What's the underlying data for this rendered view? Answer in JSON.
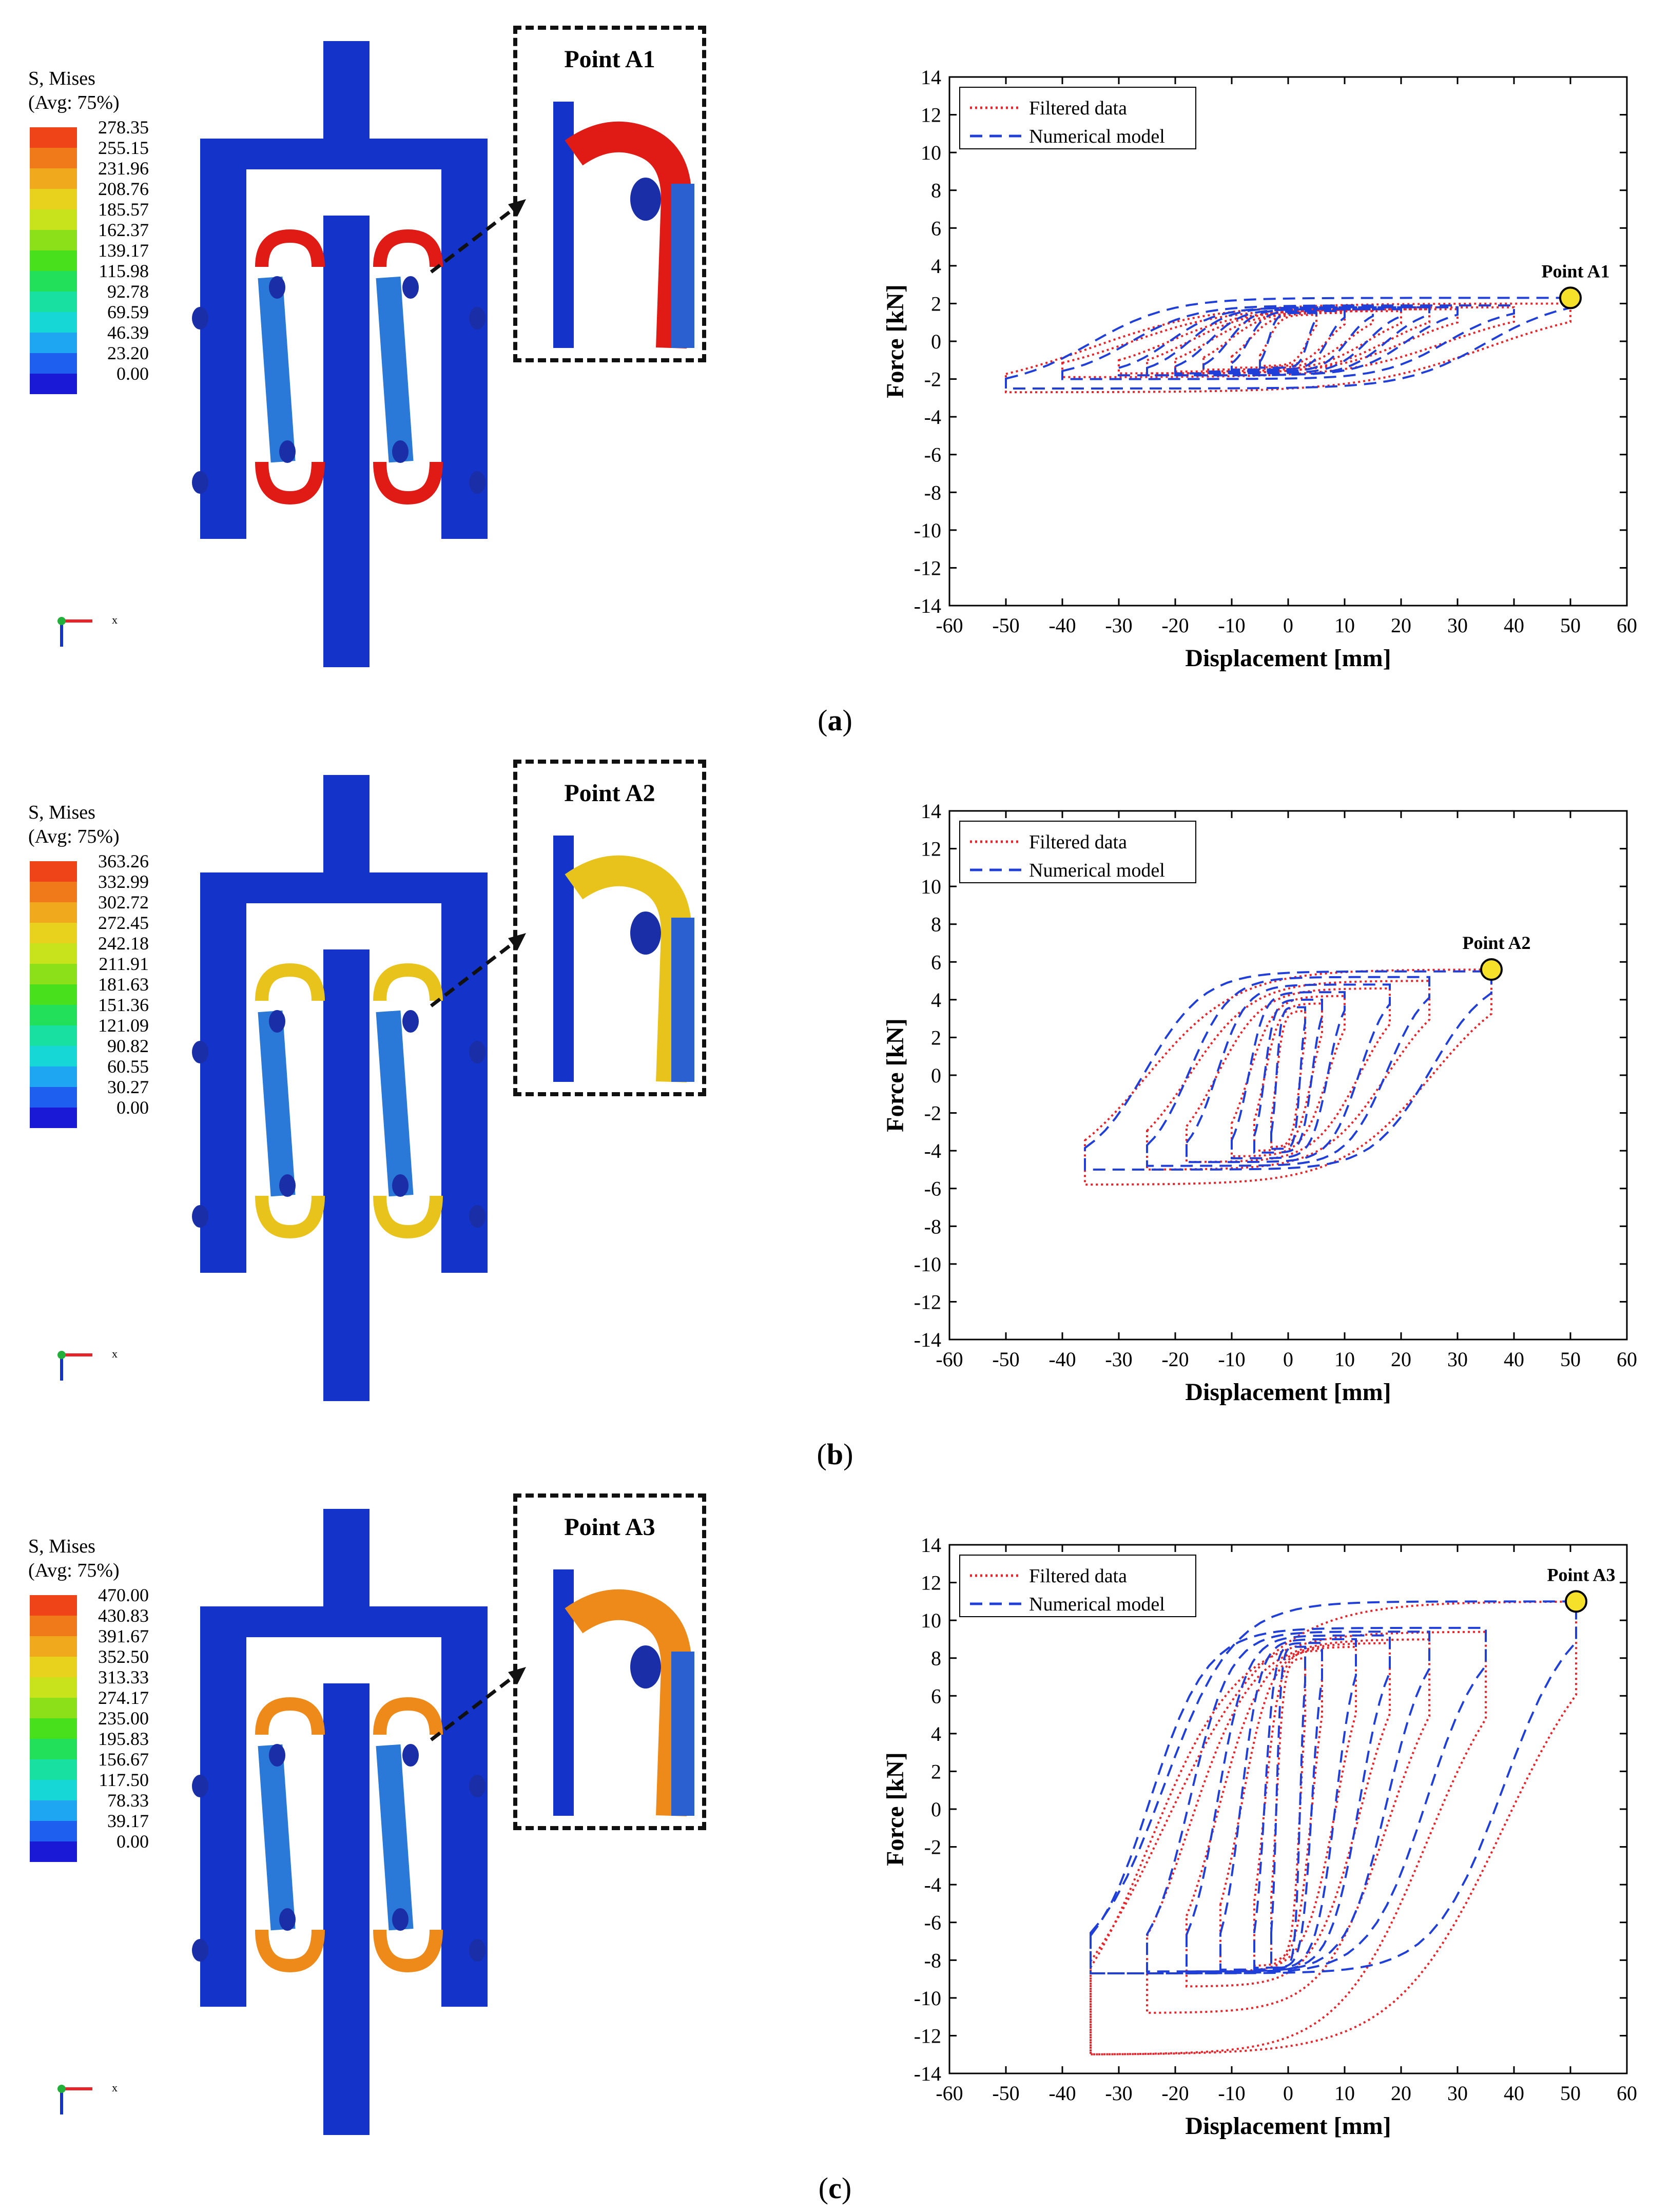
{
  "colors": {
    "filtered": "#e8242b",
    "numerical": "#1f3fd8",
    "struct": "#1433c8",
    "marker": "#f5e12a"
  },
  "legend_title_line1": "S, Mises",
  "legend_title_line2": "(Avg: 75%)",
  "legend_colors": [
    "#1a1ad6",
    "#1f5ff0",
    "#1fa6f2",
    "#16d6d6",
    "#17e0a0",
    "#23e05a",
    "#48e01c",
    "#8ce01a",
    "#c8e21c",
    "#e8d21e",
    "#f0a81c",
    "#f07a1a",
    "#ef4418"
  ],
  "axis_label": "x",
  "panels": [
    {
      "sublabel": "a",
      "legend_values": [
        "278.35",
        "255.15",
        "231.96",
        "208.76",
        "185.57",
        "162.37",
        "139.17",
        "115.98",
        "92.78",
        "69.59",
        "46.39",
        "23.20",
        "0.00"
      ],
      "point_label": "Point A1",
      "stress_color": "#e01a14"
    },
    {
      "sublabel": "b",
      "legend_values": [
        "363.26",
        "332.99",
        "302.72",
        "272.45",
        "242.18",
        "211.91",
        "181.63",
        "151.36",
        "121.09",
        "90.82",
        "60.55",
        "30.27",
        "0.00"
      ],
      "point_label": "Point A2",
      "stress_color": "#e8c31c"
    },
    {
      "sublabel": "c",
      "legend_values": [
        "470.00",
        "430.83",
        "391.67",
        "352.50",
        "313.33",
        "274.17",
        "235.00",
        "195.83",
        "156.67",
        "117.50",
        "78.33",
        "39.17",
        "0.00"
      ],
      "point_label": "Point A3",
      "stress_color": "#ee8a1a"
    }
  ],
  "chart_data": [
    {
      "type": "line",
      "xlabel": "Displacement [mm]",
      "ylabel": "Force [kN]",
      "xlim": [
        -60,
        60
      ],
      "ylim": [
        -14,
        14
      ],
      "xticks": [
        -60,
        -50,
        -40,
        -30,
        -20,
        -10,
        0,
        10,
        20,
        30,
        40,
        50,
        60
      ],
      "yticks": [
        -14,
        -12,
        -10,
        -8,
        -6,
        -4,
        -2,
        0,
        2,
        4,
        6,
        8,
        10,
        12,
        14
      ],
      "legend": [
        "Filtered data",
        "Numerical model"
      ],
      "annotation": "Point A1",
      "peak_point": [
        50,
        2.3
      ],
      "series": [
        {
          "name": "Filtered data",
          "loops": [
            [
              5,
              1.4,
              -5,
              -1.3
            ],
            [
              10,
              1.5,
              -10,
              -1.4
            ],
            [
              15,
              1.6,
              -15,
              -1.5
            ],
            [
              20,
              1.6,
              -20,
              -1.6
            ],
            [
              25,
              1.7,
              -25,
              -1.7
            ],
            [
              30,
              1.7,
              -30,
              -1.7
            ],
            [
              40,
              1.8,
              -40,
              -1.9
            ],
            [
              50,
              2.0,
              -50,
              -2.7
            ]
          ]
        },
        {
          "name": "Numerical model",
          "loops": [
            [
              5,
              1.5,
              -5,
              -1.4
            ],
            [
              10,
              1.6,
              -10,
              -1.5
            ],
            [
              15,
              1.7,
              -15,
              -1.6
            ],
            [
              20,
              1.7,
              -20,
              -1.7
            ],
            [
              25,
              1.8,
              -25,
              -1.8
            ],
            [
              30,
              1.8,
              -30,
              -1.8
            ],
            [
              40,
              1.9,
              -40,
              -2.0
            ],
            [
              50,
              2.3,
              -50,
              -2.5
            ]
          ]
        }
      ]
    },
    {
      "type": "line",
      "xlabel": "Displacement [mm]",
      "ylabel": "Force [kN]",
      "xlim": [
        -60,
        60
      ],
      "ylim": [
        -14,
        14
      ],
      "xticks": [
        -60,
        -50,
        -40,
        -30,
        -20,
        -10,
        0,
        10,
        20,
        30,
        40,
        50,
        60
      ],
      "yticks": [
        -14,
        -12,
        -10,
        -8,
        -6,
        -4,
        -2,
        0,
        2,
        4,
        6,
        8,
        10,
        12,
        14
      ],
      "legend": [
        "Filtered data",
        "Numerical model"
      ],
      "annotation": "Point A2",
      "peak_point": [
        36,
        5.6
      ],
      "series": [
        {
          "name": "Filtered data",
          "loops": [
            [
              3,
              3.4,
              -3,
              -3.8
            ],
            [
              6,
              3.8,
              -6,
              -4.0
            ],
            [
              10,
              4.2,
              -10,
              -4.3
            ],
            [
              18,
              4.6,
              -18,
              -4.6
            ],
            [
              25,
              5.0,
              -25,
              -5.0
            ],
            [
              36,
              5.6,
              -36,
              -5.8
            ]
          ]
        },
        {
          "name": "Numerical model",
          "loops": [
            [
              3,
              3.6,
              -3,
              -3.9
            ],
            [
              6,
              4.0,
              -6,
              -4.1
            ],
            [
              10,
              4.4,
              -10,
              -4.4
            ],
            [
              18,
              4.8,
              -18,
              -4.6
            ],
            [
              25,
              5.2,
              -25,
              -4.8
            ],
            [
              36,
              5.5,
              -36,
              -5.0
            ]
          ]
        }
      ]
    },
    {
      "type": "line",
      "xlabel": "Displacement [mm]",
      "ylabel": "Force [kN]",
      "xlim": [
        -60,
        60
      ],
      "ylim": [
        -14,
        14
      ],
      "xticks": [
        -60,
        -50,
        -40,
        -30,
        -20,
        -10,
        0,
        10,
        20,
        30,
        40,
        50,
        60
      ],
      "yticks": [
        -14,
        -12,
        -10,
        -8,
        -6,
        -4,
        -2,
        0,
        2,
        4,
        6,
        8,
        10,
        12,
        14
      ],
      "legend": [
        "Filtered data",
        "Numerical model"
      ],
      "annotation": "Point A3",
      "peak_point": [
        51,
        11
      ],
      "series": [
        {
          "name": "Filtered data",
          "loops": [
            [
              3,
              8.0,
              -3,
              -8.0
            ],
            [
              6,
              8.4,
              -6,
              -8.3
            ],
            [
              12,
              8.6,
              -12,
              -8.6
            ],
            [
              18,
              8.8,
              -18,
              -9.4
            ],
            [
              25,
              9.0,
              -25,
              -10.8
            ],
            [
              35,
              9.4,
              -35,
              -13.0
            ],
            [
              51,
              11,
              -35,
              -13.0
            ]
          ]
        },
        {
          "name": "Numerical model",
          "loops": [
            [
              3,
              8.6,
              -3,
              -8.4
            ],
            [
              6,
              8.8,
              -6,
              -8.4
            ],
            [
              12,
              9.0,
              -12,
              -8.5
            ],
            [
              18,
              9.2,
              -18,
              -8.6
            ],
            [
              25,
              9.4,
              -25,
              -8.6
            ],
            [
              35,
              9.6,
              -35,
              -8.7
            ],
            [
              51,
              11,
              -35,
              -8.7
            ]
          ]
        }
      ]
    }
  ]
}
